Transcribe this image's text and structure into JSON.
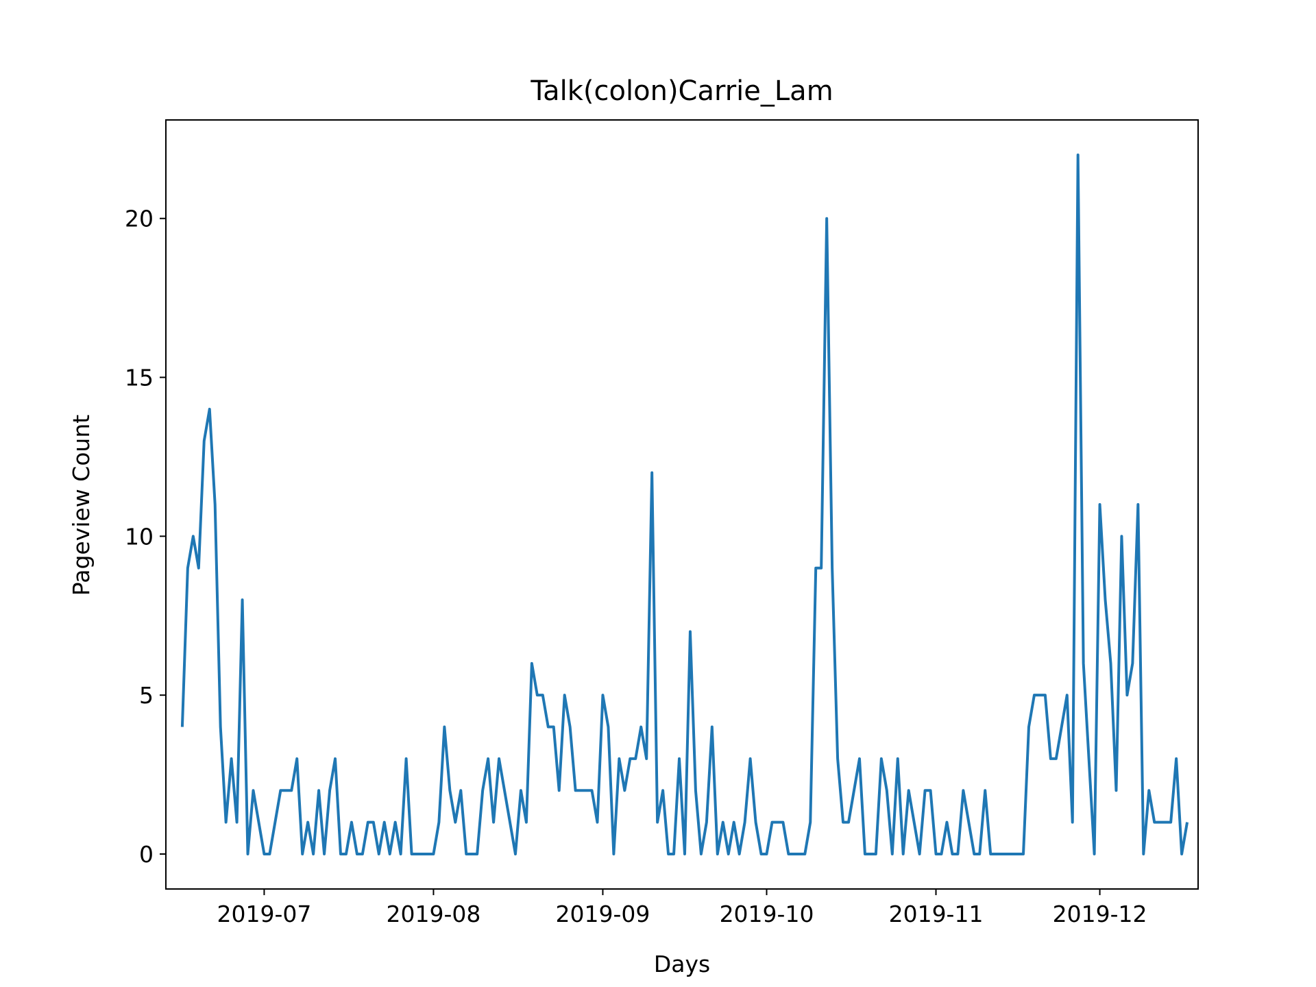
{
  "colors": {
    "line": "#1f77b4",
    "axes": "#000000",
    "background": "#ffffff"
  },
  "chart_data": {
    "type": "line",
    "title": "Talk(colon)Carrie_Lam",
    "xlabel": "Days",
    "ylabel": "Pageview Count",
    "grid": false,
    "legend": "none",
    "x_start": "2019-06-16",
    "xlim": [
      "2019-06-13",
      "2019-12-19"
    ],
    "ylim": [
      -1.1,
      23.1
    ],
    "x_ticks": [
      "2019-07-01",
      "2019-08-01",
      "2019-09-01",
      "2019-10-01",
      "2019-11-01",
      "2019-12-01"
    ],
    "x_tick_labels": [
      "2019-07",
      "2019-08",
      "2019-09",
      "2019-10",
      "2019-11",
      "2019-12"
    ],
    "y_ticks": [
      0,
      5,
      10,
      15,
      20
    ],
    "y_tick_labels": [
      "0",
      "5",
      "10",
      "15",
      "20"
    ],
    "series": [
      {
        "name": "",
        "values": [
          4,
          9,
          10,
          9,
          13,
          14,
          11,
          4,
          1,
          3,
          1,
          8,
          0,
          2,
          1,
          0,
          0,
          1,
          2,
          2,
          2,
          3,
          0,
          1,
          0,
          2,
          0,
          2,
          3,
          0,
          0,
          1,
          0,
          0,
          1,
          1,
          0,
          1,
          0,
          1,
          0,
          3,
          0,
          0,
          0,
          0,
          0,
          1,
          4,
          2,
          1,
          2,
          0,
          0,
          0,
          2,
          3,
          1,
          3,
          2,
          1,
          0,
          2,
          1,
          6,
          5,
          5,
          4,
          4,
          2,
          5,
          4,
          2,
          2,
          2,
          2,
          1,
          5,
          4,
          0,
          3,
          2,
          3,
          3,
          4,
          3,
          12,
          1,
          2,
          0,
          0,
          3,
          0,
          7,
          2,
          0,
          1,
          4,
          0,
          1,
          0,
          1,
          0,
          1,
          3,
          1,
          0,
          0,
          1,
          1,
          1,
          0,
          0,
          0,
          0,
          1,
          9,
          9,
          20,
          9,
          3,
          1,
          1,
          2,
          3,
          0,
          0,
          0,
          3,
          2,
          0,
          3,
          0,
          2,
          1,
          0,
          2,
          2,
          0,
          0,
          1,
          0,
          0,
          2,
          1,
          0,
          0,
          2,
          0,
          0,
          0,
          0,
          0,
          0,
          0,
          4,
          5,
          5,
          5,
          3,
          3,
          4,
          5,
          1,
          22,
          6,
          3,
          0,
          11,
          8,
          6,
          2,
          10,
          5,
          6,
          11,
          0,
          2,
          1,
          1,
          1,
          1,
          3,
          0,
          1
        ]
      }
    ]
  }
}
